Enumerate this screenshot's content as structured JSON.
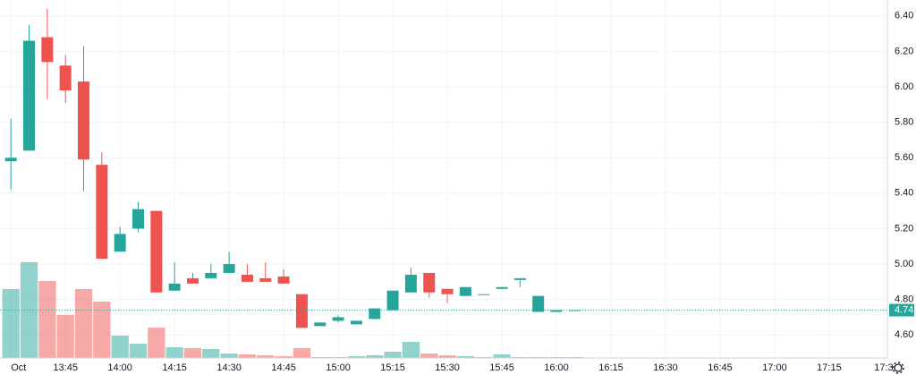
{
  "chart_data": {
    "type": "candlestick",
    "x": [
      "13:30",
      "13:35",
      "13:40",
      "13:45",
      "13:50",
      "13:55",
      "14:00",
      "14:05",
      "14:10",
      "14:15",
      "14:20",
      "14:25",
      "14:30",
      "14:35",
      "14:40",
      "14:45",
      "14:50",
      "14:55",
      "15:00",
      "15:05",
      "15:10",
      "15:15",
      "15:20",
      "15:25",
      "15:30",
      "15:35",
      "15:40",
      "15:45",
      "15:50",
      "15:55",
      "16:00",
      "16:05"
    ],
    "open": [
      5.58,
      5.64,
      6.28,
      6.12,
      6.03,
      5.56,
      5.07,
      5.2,
      5.3,
      4.85,
      4.92,
      4.92,
      4.95,
      4.94,
      4.92,
      4.93,
      4.83,
      4.65,
      4.68,
      4.66,
      4.69,
      4.74,
      4.84,
      4.95,
      4.86,
      4.82,
      4.83,
      4.86,
      4.91,
      4.73,
      4.73,
      4.74
    ],
    "high": [
      5.82,
      6.35,
      6.44,
      6.18,
      6.23,
      5.63,
      5.21,
      5.35,
      5.3,
      5.01,
      4.95,
      5.0,
      5.07,
      5.0,
      5.01,
      4.97,
      4.83,
      4.67,
      4.71,
      4.68,
      4.75,
      4.85,
      4.98,
      4.95,
      4.86,
      4.87,
      4.83,
      4.87,
      4.92,
      4.82,
      4.74,
      4.74
    ],
    "low": [
      5.42,
      5.64,
      5.93,
      5.91,
      5.41,
      5.03,
      5.07,
      5.18,
      4.84,
      4.85,
      4.89,
      4.92,
      4.95,
      4.9,
      4.9,
      4.89,
      4.64,
      4.65,
      4.67,
      4.66,
      4.69,
      4.74,
      4.84,
      4.81,
      4.78,
      4.82,
      4.83,
      4.86,
      4.87,
      4.73,
      4.73,
      4.74
    ],
    "close": [
      5.6,
      6.26,
      6.14,
      5.98,
      5.59,
      5.03,
      5.17,
      5.31,
      4.84,
      4.89,
      4.89,
      4.95,
      5.0,
      4.9,
      4.9,
      4.89,
      4.64,
      4.67,
      4.7,
      4.68,
      4.75,
      4.85,
      4.94,
      4.84,
      4.83,
      4.87,
      4.83,
      4.87,
      4.92,
      4.82,
      4.74,
      4.74
    ],
    "volume": [
      77,
      107,
      86,
      48,
      77,
      63,
      25,
      16,
      34,
      12,
      11,
      10,
      5,
      4,
      3,
      2,
      11,
      1,
      1,
      2,
      3,
      7,
      18,
      5,
      3,
      2,
      1,
      4,
      1,
      1,
      1,
      1
    ],
    "up_color": "#26a69a",
    "down_color": "#ef5350",
    "last_price": 4.74,
    "xlim": [
      "13:27",
      "17:31"
    ],
    "xticks": [
      {
        "value": "13:30",
        "label": "Oct"
      },
      "13:45",
      "14:00",
      "14:15",
      "14:30",
      "14:45",
      "15:00",
      "15:15",
      "15:30",
      "15:45",
      "16:00",
      "16:15",
      "16:30",
      "16:45",
      "17:00",
      "17:15",
      {
        "value": "17:30",
        "label": "17:3"
      }
    ],
    "ylim": [
      4.47,
      6.49
    ],
    "yticks": [
      {
        "value": 4.6,
        "label": "4.60"
      },
      {
        "value": 4.8,
        "label": "4.80"
      },
      {
        "value": 5.0,
        "label": "5.00"
      },
      {
        "value": 5.2,
        "label": "5.20"
      },
      {
        "value": 5.4,
        "label": "5.40"
      },
      {
        "value": 5.6,
        "label": "5.60"
      },
      {
        "value": 5.8,
        "label": "5.80"
      },
      {
        "value": 6.0,
        "label": "6.00"
      },
      {
        "value": 6.2,
        "label": "6.20"
      },
      {
        "value": 6.4,
        "label": "6.40"
      }
    ],
    "grid": true
  }
}
